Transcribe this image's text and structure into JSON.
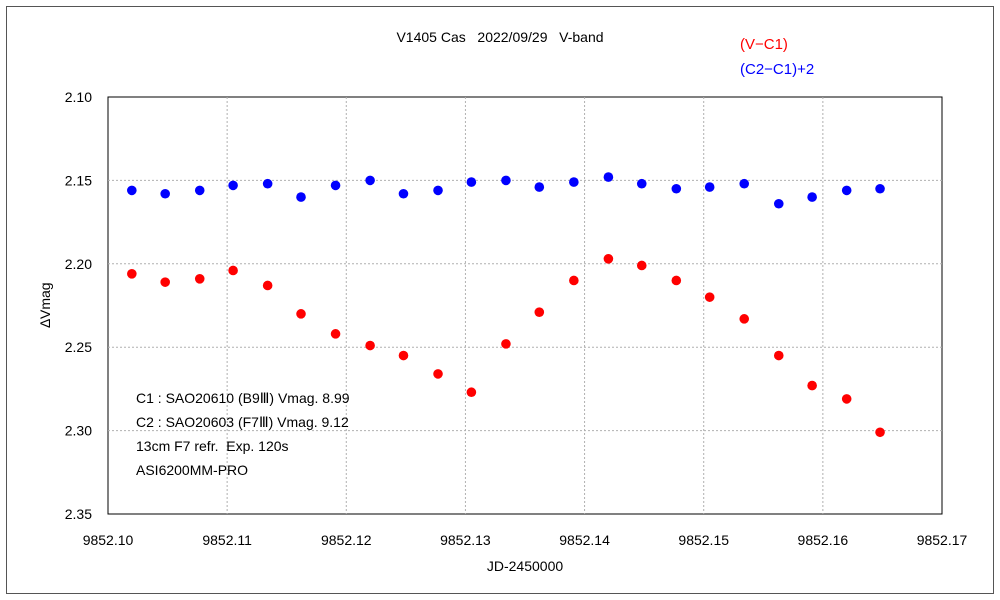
{
  "chart_data": {
    "type": "scatter",
    "title": "V1405 Cas   2022/09/29   V-band",
    "xlabel": "JD-2450000",
    "ylabel": "∆Vmag",
    "xlim": [
      9852.1,
      9852.17
    ],
    "ylim": [
      2.1,
      2.35
    ],
    "y_inverted": true,
    "grid": true,
    "legend_position": "top-right",
    "x_ticks": [
      "9852.10",
      "9852.11",
      "9852.12",
      "9852.13",
      "9852.14",
      "9852.15",
      "9852.16",
      "9852.17"
    ],
    "y_ticks": [
      "2.10",
      "2.15",
      "2.20",
      "2.25",
      "2.30",
      "2.35"
    ],
    "x": [
      9852.102,
      9852.1048,
      9852.1077,
      9852.1105,
      9852.1134,
      9852.1162,
      9852.1191,
      9852.122,
      9852.1248,
      9852.1277,
      9852.1305,
      9852.1334,
      9852.1362,
      9852.1391,
      9852.142,
      9852.1448,
      9852.1477,
      9852.1505,
      9852.1534,
      9852.1563,
      9852.1591,
      9852.162,
      9852.1648
    ],
    "series": [
      {
        "name": "(C2−C1)+2",
        "color": "#0000ff",
        "values": [
          2.156,
          2.158,
          2.156,
          2.153,
          2.152,
          2.16,
          2.153,
          2.15,
          2.158,
          2.156,
          2.151,
          2.15,
          2.154,
          2.151,
          2.148,
          2.152,
          2.155,
          2.154,
          2.152,
          2.164,
          2.16,
          2.156,
          2.155
        ]
      },
      {
        "name": "(V−C1)",
        "color": "#ff0000",
        "values": [
          2.206,
          2.211,
          2.209,
          2.204,
          2.213,
          2.23,
          2.242,
          2.249,
          2.255,
          2.266,
          2.277,
          2.248,
          2.229,
          2.21,
          2.197,
          2.201,
          2.21,
          2.22,
          2.233,
          2.255,
          2.273,
          2.281,
          2.301
        ]
      }
    ],
    "annotations": [
      "C1 : SAO20610 (B9Ⅲ) Vmag. 8.99",
      "C2 : SAO20603 (F7Ⅲ) Vmag. 9.12",
      "13cm F7 refr.  Exp. 120s",
      "ASI6200MM-PRO"
    ]
  }
}
